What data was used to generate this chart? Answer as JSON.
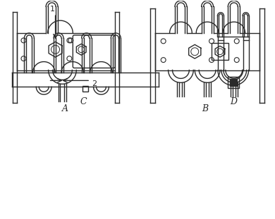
{
  "bg_color": "#ffffff",
  "lc": "#2a2a2a",
  "lw": 1.0,
  "labels": [
    "A",
    "B",
    "C",
    "D"
  ],
  "label_1": "1",
  "label_2": "2"
}
